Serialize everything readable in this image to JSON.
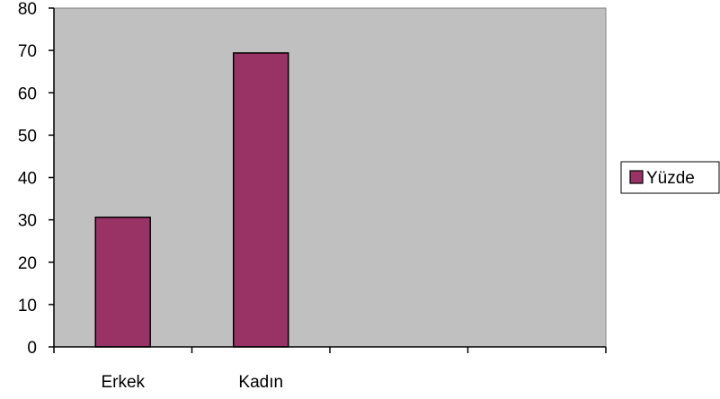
{
  "chart_data": {
    "type": "bar",
    "categories": [
      "Erkek",
      "Kadın",
      "",
      ""
    ],
    "series": [
      {
        "name": "Yüzde",
        "values": [
          30.6,
          69.4,
          null,
          null
        ]
      }
    ],
    "ylim": [
      0,
      80
    ],
    "yticks": [
      0,
      10,
      20,
      30,
      40,
      50,
      60,
      70,
      80
    ],
    "grid": false,
    "legend": "right"
  },
  "colors": {
    "plot_background": "#c0c0c0",
    "bar_fill": "#993366",
    "axis": "#000000"
  }
}
